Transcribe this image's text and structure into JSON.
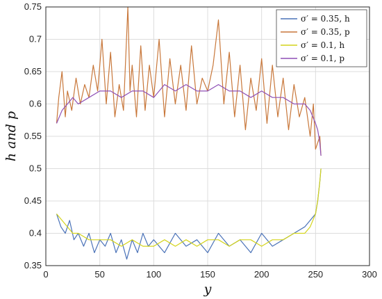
{
  "chart_data": {
    "type": "line",
    "xlabel": "y",
    "ylabel": "h and p",
    "xlim": [
      0,
      300
    ],
    "ylim": [
      0.35,
      0.75
    ],
    "xticks": [
      "0",
      "50",
      "100",
      "150",
      "200",
      "250",
      "300"
    ],
    "yticks": [
      "0.35",
      "0.4",
      "0.45",
      "0.5",
      "0.55",
      "0.6",
      "0.65",
      "0.7",
      "0.75"
    ],
    "grid": true,
    "legend_position": "top-right",
    "series": [
      {
        "name": "σ′ = 0.35, h",
        "color": "#4a72b8",
        "x": [
          10,
          14,
          18,
          22,
          26,
          30,
          35,
          40,
          45,
          50,
          55,
          60,
          65,
          70,
          75,
          80,
          85,
          90,
          95,
          100,
          110,
          120,
          130,
          140,
          150,
          160,
          170,
          180,
          190,
          200,
          210,
          220,
          230,
          240,
          245,
          250,
          252,
          254,
          255
        ],
        "y": [
          0.43,
          0.41,
          0.4,
          0.42,
          0.39,
          0.4,
          0.38,
          0.4,
          0.37,
          0.39,
          0.38,
          0.4,
          0.37,
          0.39,
          0.36,
          0.39,
          0.37,
          0.4,
          0.38,
          0.39,
          0.37,
          0.4,
          0.38,
          0.39,
          0.37,
          0.4,
          0.38,
          0.39,
          0.37,
          0.4,
          0.38,
          0.39,
          0.4,
          0.41,
          0.42,
          0.43,
          0.45,
          0.48,
          0.5
        ]
      },
      {
        "name": "σ′ = 0.35, p",
        "color": "#c8773a",
        "x": [
          10,
          12,
          15,
          18,
          20,
          24,
          28,
          32,
          36,
          40,
          44,
          48,
          52,
          56,
          60,
          64,
          68,
          72,
          76,
          78,
          80,
          84,
          88,
          92,
          96,
          100,
          105,
          110,
          115,
          120,
          125,
          130,
          135,
          140,
          145,
          150,
          155,
          160,
          165,
          170,
          175,
          180,
          185,
          190,
          195,
          200,
          205,
          210,
          215,
          220,
          225,
          230,
          235,
          240,
          245,
          248,
          250,
          252,
          254,
          255
        ],
        "y": [
          0.57,
          0.61,
          0.65,
          0.58,
          0.62,
          0.59,
          0.64,
          0.6,
          0.63,
          0.61,
          0.66,
          0.62,
          0.7,
          0.6,
          0.68,
          0.58,
          0.63,
          0.59,
          0.75,
          0.62,
          0.66,
          0.58,
          0.69,
          0.59,
          0.66,
          0.61,
          0.7,
          0.58,
          0.67,
          0.6,
          0.66,
          0.59,
          0.69,
          0.6,
          0.64,
          0.62,
          0.66,
          0.73,
          0.6,
          0.68,
          0.58,
          0.66,
          0.56,
          0.64,
          0.59,
          0.67,
          0.57,
          0.66,
          0.58,
          0.64,
          0.56,
          0.63,
          0.58,
          0.61,
          0.55,
          0.6,
          0.53,
          0.54,
          0.55,
          0.52
        ]
      },
      {
        "name": "σ′ = 0.1, h",
        "color": "#d4d41a",
        "x": [
          10,
          15,
          20,
          25,
          30,
          40,
          50,
          60,
          70,
          80,
          90,
          100,
          110,
          120,
          130,
          140,
          150,
          160,
          170,
          180,
          190,
          200,
          210,
          220,
          230,
          240,
          245,
          250,
          252,
          254,
          255
        ],
        "y": [
          0.43,
          0.42,
          0.41,
          0.4,
          0.4,
          0.39,
          0.39,
          0.39,
          0.38,
          0.39,
          0.38,
          0.38,
          0.39,
          0.38,
          0.39,
          0.38,
          0.39,
          0.39,
          0.38,
          0.39,
          0.39,
          0.38,
          0.39,
          0.39,
          0.4,
          0.4,
          0.41,
          0.43,
          0.45,
          0.48,
          0.5
        ]
      },
      {
        "name": "σ′ = 0.1, p",
        "color": "#8e4fb5",
        "x": [
          10,
          15,
          20,
          25,
          30,
          40,
          50,
          60,
          70,
          80,
          90,
          100,
          110,
          120,
          130,
          140,
          150,
          160,
          170,
          180,
          190,
          200,
          210,
          220,
          230,
          240,
          245,
          250,
          252,
          254,
          255
        ],
        "y": [
          0.57,
          0.59,
          0.6,
          0.61,
          0.6,
          0.61,
          0.62,
          0.62,
          0.61,
          0.62,
          0.62,
          0.61,
          0.63,
          0.62,
          0.63,
          0.62,
          0.62,
          0.63,
          0.62,
          0.62,
          0.61,
          0.62,
          0.61,
          0.61,
          0.6,
          0.6,
          0.59,
          0.57,
          0.56,
          0.54,
          0.52
        ]
      }
    ]
  }
}
